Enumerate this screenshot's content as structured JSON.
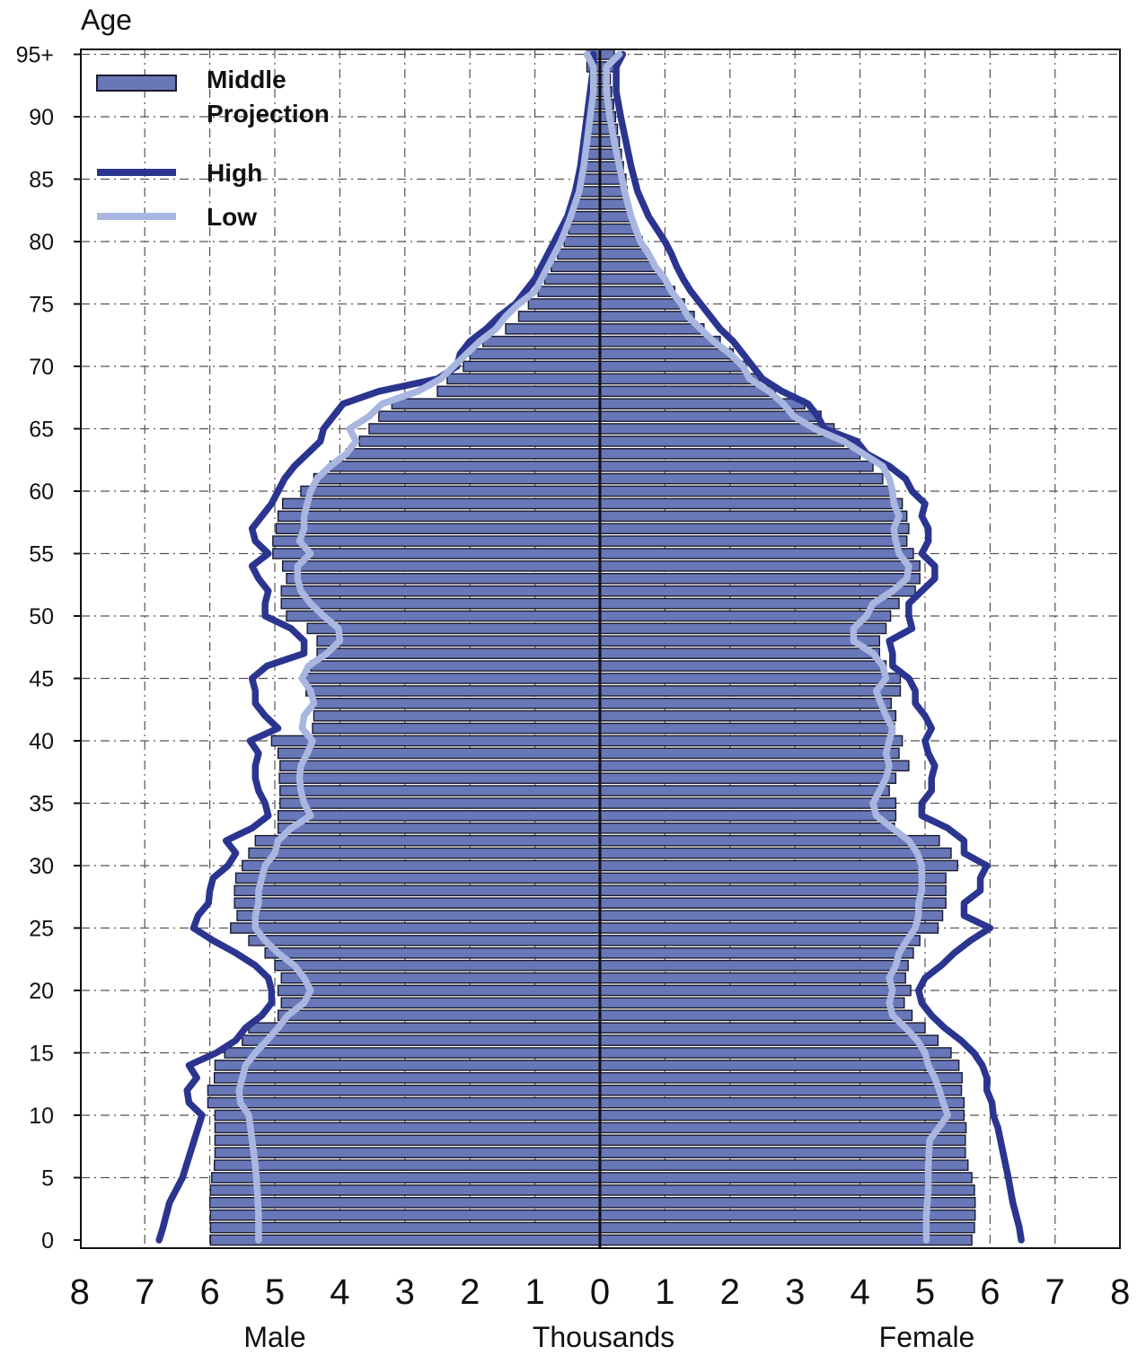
{
  "chart_data": {
    "type": "bar",
    "orientation": "horizontal",
    "y_axis_title": "Age",
    "x_axis_caption": "Thousands",
    "left_label": "Male",
    "right_label": "Female",
    "x_ticks_left": [
      "8",
      "7",
      "6",
      "5",
      "4",
      "3",
      "2",
      "1"
    ],
    "x_center_tick": "0",
    "x_ticks_right": [
      "1",
      "2",
      "3",
      "4",
      "5",
      "6",
      "7",
      "8"
    ],
    "y_ticks": [
      {
        "age": 0,
        "label": "0"
      },
      {
        "age": 5,
        "label": "5"
      },
      {
        "age": 10,
        "label": "10"
      },
      {
        "age": 15,
        "label": "15"
      },
      {
        "age": 20,
        "label": "20"
      },
      {
        "age": 25,
        "label": "25"
      },
      {
        "age": 30,
        "label": "30"
      },
      {
        "age": 35,
        "label": "35"
      },
      {
        "age": 40,
        "label": "40"
      },
      {
        "age": 45,
        "label": "45"
      },
      {
        "age": 50,
        "label": "50"
      },
      {
        "age": 55,
        "label": "55"
      },
      {
        "age": 60,
        "label": "60"
      },
      {
        "age": 65,
        "label": "65"
      },
      {
        "age": 70,
        "label": "70"
      },
      {
        "age": 75,
        "label": "75"
      },
      {
        "age": 80,
        "label": "80"
      },
      {
        "age": 85,
        "label": "85"
      },
      {
        "age": 90,
        "label": "90"
      },
      {
        "age": 95,
        "label": "95+"
      }
    ],
    "xlim": [
      -8,
      8
    ],
    "ylim": [
      0,
      95
    ],
    "grid": true,
    "legend_position": "top-left",
    "legend": {
      "middle_line1": "Middle",
      "middle_line2": "Projection",
      "high": "High",
      "low": "Low"
    },
    "colors": {
      "middle_fill": "#6777b8",
      "bar_stroke": "#1a1a2e",
      "high": "#2b3590",
      "low": "#a8b6e0"
    },
    "series": [
      {
        "name": "Middle Projection",
        "ages": [
          0,
          1,
          2,
          3,
          4,
          5,
          6,
          7,
          8,
          9,
          10,
          11,
          12,
          13,
          14,
          15,
          16,
          17,
          18,
          19,
          20,
          21,
          22,
          23,
          24,
          25,
          26,
          27,
          28,
          29,
          30,
          31,
          32,
          33,
          34,
          35,
          36,
          37,
          38,
          39,
          40,
          41,
          42,
          43,
          44,
          45,
          46,
          47,
          48,
          49,
          50,
          51,
          52,
          53,
          54,
          55,
          56,
          57,
          58,
          59,
          60,
          61,
          62,
          63,
          64,
          65,
          66,
          67,
          68,
          69,
          70,
          71,
          72,
          73,
          74,
          75,
          76,
          77,
          78,
          79,
          80,
          81,
          82,
          83,
          84,
          85,
          86,
          87,
          88,
          89,
          90,
          91,
          92,
          93,
          94,
          95
        ],
        "male": [
          5.99,
          5.99,
          5.99,
          6.0,
          5.99,
          5.97,
          5.93,
          5.92,
          5.92,
          5.92,
          5.92,
          6.03,
          6.03,
          5.93,
          5.92,
          5.77,
          5.5,
          5.4,
          4.95,
          4.9,
          4.95,
          4.9,
          5.0,
          5.15,
          5.4,
          5.68,
          5.58,
          5.62,
          5.62,
          5.6,
          5.5,
          5.4,
          5.3,
          4.95,
          4.95,
          4.92,
          4.92,
          4.93,
          4.92,
          4.95,
          5.05,
          4.42,
          4.4,
          4.42,
          4.52,
          4.52,
          4.45,
          4.35,
          4.35,
          4.5,
          4.82,
          4.9,
          4.9,
          4.82,
          4.88,
          5.03,
          5.03,
          4.98,
          4.95,
          4.88,
          4.6,
          4.4,
          4.15,
          3.9,
          3.7,
          3.55,
          3.4,
          3.2,
          2.5,
          2.35,
          2.1,
          2.0,
          1.8,
          1.45,
          1.25,
          1.1,
          0.95,
          0.85,
          0.75,
          0.65,
          0.55,
          0.48,
          0.42,
          0.38,
          0.35,
          0.33,
          0.3,
          0.28,
          0.25,
          0.22,
          0.2,
          0.18,
          0.16,
          0.15,
          0.2,
          0.2
        ],
        "female": [
          5.72,
          5.76,
          5.77,
          5.77,
          5.76,
          5.72,
          5.66,
          5.62,
          5.62,
          5.63,
          5.6,
          5.6,
          5.56,
          5.57,
          5.52,
          5.4,
          5.2,
          5.0,
          4.8,
          4.68,
          4.78,
          4.7,
          4.74,
          4.82,
          4.92,
          5.2,
          5.27,
          5.32,
          5.32,
          5.32,
          5.5,
          5.4,
          5.22,
          4.53,
          4.55,
          4.55,
          4.45,
          4.55,
          4.75,
          4.6,
          4.65,
          4.53,
          4.55,
          4.48,
          4.62,
          4.62,
          4.4,
          4.3,
          4.3,
          4.4,
          4.47,
          4.6,
          4.85,
          4.92,
          4.92,
          4.82,
          4.72,
          4.75,
          4.72,
          4.65,
          4.5,
          4.35,
          4.2,
          4.0,
          3.75,
          3.6,
          3.4,
          3.15,
          2.7,
          2.45,
          2.25,
          2.05,
          1.85,
          1.6,
          1.45,
          1.3,
          1.15,
          1.0,
          0.85,
          0.75,
          0.65,
          0.55,
          0.48,
          0.45,
          0.42,
          0.4,
          0.36,
          0.33,
          0.3,
          0.27,
          0.24,
          0.21,
          0.18,
          0.16,
          0.22,
          0.22
        ]
      },
      {
        "name": "High",
        "ages": [
          0,
          1,
          3,
          5,
          7,
          9,
          10,
          11,
          12,
          13,
          14,
          15,
          16,
          17,
          18,
          19,
          20,
          21,
          22,
          23,
          24,
          25,
          26,
          27,
          28,
          29,
          30,
          31,
          32,
          33,
          34,
          35,
          36,
          37,
          38,
          39,
          40,
          41,
          42,
          43,
          44,
          45,
          46,
          47,
          48,
          49,
          50,
          51,
          52,
          53,
          54,
          55,
          56,
          57,
          58,
          59,
          60,
          61,
          62,
          63,
          64,
          65,
          66,
          67,
          68,
          69,
          70,
          71,
          72,
          73,
          74,
          75,
          76,
          77,
          78,
          79,
          80,
          82,
          84,
          86,
          88,
          90,
          92,
          94,
          95
        ],
        "male": [
          6.78,
          6.72,
          6.62,
          6.42,
          6.3,
          6.18,
          6.12,
          6.32,
          6.35,
          6.2,
          6.32,
          5.9,
          5.6,
          5.45,
          5.2,
          5.05,
          5.05,
          5.1,
          5.3,
          5.6,
          5.95,
          6.25,
          6.18,
          6.02,
          6.0,
          5.95,
          5.72,
          5.6,
          5.75,
          5.35,
          5.1,
          5.15,
          5.25,
          5.3,
          5.3,
          5.25,
          5.38,
          4.95,
          5.15,
          5.3,
          5.3,
          5.35,
          5.12,
          4.55,
          4.55,
          4.75,
          5.15,
          5.15,
          5.1,
          5.25,
          5.35,
          5.1,
          5.3,
          5.35,
          5.2,
          5.05,
          4.95,
          4.85,
          4.7,
          4.5,
          4.3,
          4.25,
          4.1,
          3.95,
          3.4,
          2.5,
          2.2,
          2.15,
          2.0,
          1.75,
          1.55,
          1.3,
          1.15,
          1.0,
          0.9,
          0.8,
          0.7,
          0.5,
          0.38,
          0.3,
          0.25,
          0.2,
          0.15,
          0.1,
          0.1
        ],
        "female": [
          6.48,
          6.45,
          6.35,
          6.28,
          6.2,
          6.12,
          6.05,
          6.03,
          5.95,
          5.95,
          5.88,
          5.75,
          5.55,
          5.3,
          5.1,
          4.95,
          4.9,
          5.0,
          5.25,
          5.45,
          5.7,
          6.0,
          5.6,
          5.6,
          5.85,
          5.85,
          5.95,
          5.6,
          5.6,
          5.35,
          4.95,
          4.95,
          5.1,
          5.1,
          5.15,
          5.05,
          5.0,
          5.1,
          5.0,
          4.85,
          4.85,
          4.75,
          4.5,
          4.5,
          4.45,
          4.8,
          4.75,
          4.75,
          4.95,
          5.15,
          5.15,
          4.95,
          5.05,
          5.05,
          4.95,
          5.0,
          4.8,
          4.7,
          4.45,
          4.1,
          3.95,
          3.45,
          3.35,
          3.2,
          2.8,
          2.5,
          2.35,
          2.2,
          2.05,
          1.85,
          1.7,
          1.55,
          1.4,
          1.28,
          1.18,
          1.1,
          1.0,
          0.75,
          0.58,
          0.48,
          0.4,
          0.32,
          0.25,
          0.25,
          0.35
        ]
      },
      {
        "name": "Low",
        "ages": [
          0,
          2,
          4,
          6,
          8,
          10,
          11,
          12,
          13,
          14,
          15,
          16,
          17,
          18,
          19,
          20,
          21,
          22,
          23,
          24,
          25,
          26,
          27,
          28,
          29,
          30,
          31,
          32,
          33,
          34,
          35,
          36,
          37,
          38,
          39,
          40,
          41,
          42,
          43,
          44,
          45,
          46,
          47,
          48,
          49,
          50,
          51,
          52,
          53,
          54,
          55,
          56,
          57,
          58,
          59,
          60,
          61,
          62,
          63,
          64,
          65,
          66,
          67,
          68,
          69,
          70,
          71,
          72,
          73,
          74,
          75,
          76,
          77,
          78,
          79,
          80,
          82,
          84,
          86,
          88,
          90,
          92,
          94,
          95
        ],
        "male": [
          5.25,
          5.25,
          5.27,
          5.3,
          5.35,
          5.4,
          5.53,
          5.55,
          5.5,
          5.45,
          5.3,
          5.12,
          4.95,
          4.8,
          4.55,
          4.45,
          4.55,
          4.7,
          4.95,
          5.15,
          5.3,
          5.3,
          5.25,
          5.25,
          5.2,
          5.15,
          5.0,
          4.95,
          4.75,
          4.45,
          4.55,
          4.6,
          4.62,
          4.6,
          4.5,
          4.42,
          4.58,
          4.55,
          4.4,
          4.45,
          4.58,
          4.48,
          4.2,
          4.0,
          4.02,
          4.25,
          4.45,
          4.6,
          4.65,
          4.65,
          4.45,
          4.62,
          4.55,
          4.55,
          4.5,
          4.45,
          4.35,
          4.15,
          3.9,
          3.75,
          3.85,
          3.55,
          3.35,
          2.8,
          2.45,
          2.25,
          2.05,
          1.85,
          1.6,
          1.45,
          1.25,
          1.0,
          0.9,
          0.8,
          0.7,
          0.6,
          0.45,
          0.32,
          0.25,
          0.2,
          0.15,
          0.1,
          0.1,
          0.2
        ],
        "female": [
          5.02,
          5.02,
          5.05,
          5.05,
          5.07,
          5.35,
          5.28,
          5.22,
          5.15,
          5.05,
          5.0,
          4.88,
          4.7,
          4.5,
          4.45,
          4.5,
          4.45,
          4.55,
          4.6,
          4.72,
          4.85,
          4.9,
          4.9,
          4.95,
          4.95,
          4.95,
          4.88,
          4.75,
          4.5,
          4.25,
          4.2,
          4.3,
          4.4,
          4.45,
          4.4,
          4.45,
          4.5,
          4.4,
          4.32,
          4.25,
          4.4,
          4.35,
          4.2,
          3.9,
          3.9,
          4.1,
          4.2,
          4.5,
          4.72,
          4.75,
          4.6,
          4.55,
          4.52,
          4.6,
          4.52,
          4.5,
          4.45,
          4.35,
          4.05,
          3.75,
          3.3,
          2.98,
          2.82,
          2.6,
          2.3,
          2.2,
          2.0,
          1.75,
          1.55,
          1.35,
          1.25,
          1.1,
          1.0,
          0.85,
          0.75,
          0.62,
          0.48,
          0.38,
          0.3,
          0.22,
          0.15,
          0.1,
          0.1,
          0.3
        ]
      }
    ]
  }
}
